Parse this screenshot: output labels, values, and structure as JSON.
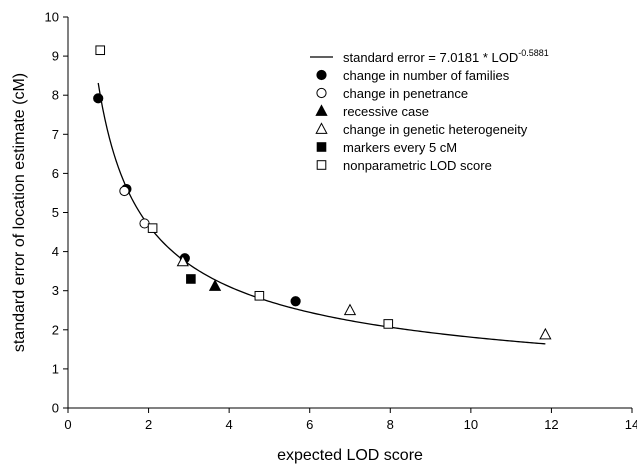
{
  "chart_data": {
    "type": "scatter",
    "xlabel": "expected LOD score",
    "ylabel": "standard error of location estimate (cM)",
    "xlim": [
      0,
      14
    ],
    "ylim": [
      0,
      10
    ],
    "xticks": [
      0,
      2,
      4,
      6,
      8,
      10,
      12,
      14
    ],
    "yticks": [
      0,
      1,
      2,
      3,
      4,
      5,
      6,
      7,
      8,
      9,
      10
    ],
    "grid": false,
    "legend_position": "top-right",
    "fit": {
      "name": "standard error = 7.0181 * LOD",
      "exponent_text": "-0.5881",
      "coefficient": 7.0181,
      "exponent": -0.5881,
      "x_range": [
        0.75,
        11.85
      ]
    },
    "series": [
      {
        "name": "change in number of families",
        "marker": "circle-filled",
        "points": [
          [
            0.75,
            7.92
          ],
          [
            1.45,
            5.6
          ],
          [
            2.9,
            3.83
          ],
          [
            5.65,
            2.73
          ]
        ]
      },
      {
        "name": "change in penetrance",
        "marker": "circle-open",
        "points": [
          [
            1.4,
            5.55
          ],
          [
            1.9,
            4.72
          ]
        ]
      },
      {
        "name": "recessive case",
        "marker": "triangle-filled",
        "points": [
          [
            3.65,
            3.12
          ]
        ]
      },
      {
        "name": "change in genetic heterogeneity",
        "marker": "triangle-open",
        "points": [
          [
            2.85,
            3.75
          ],
          [
            7.0,
            2.5
          ],
          [
            11.85,
            1.88
          ]
        ]
      },
      {
        "name": "markers every 5 cM",
        "marker": "square-filled",
        "points": [
          [
            3.05,
            3.3
          ]
        ]
      },
      {
        "name": "nonparametric LOD score",
        "marker": "square-open",
        "points": [
          [
            0.8,
            9.15
          ],
          [
            2.1,
            4.6
          ],
          [
            4.75,
            2.87
          ],
          [
            7.95,
            2.15
          ]
        ]
      }
    ]
  }
}
